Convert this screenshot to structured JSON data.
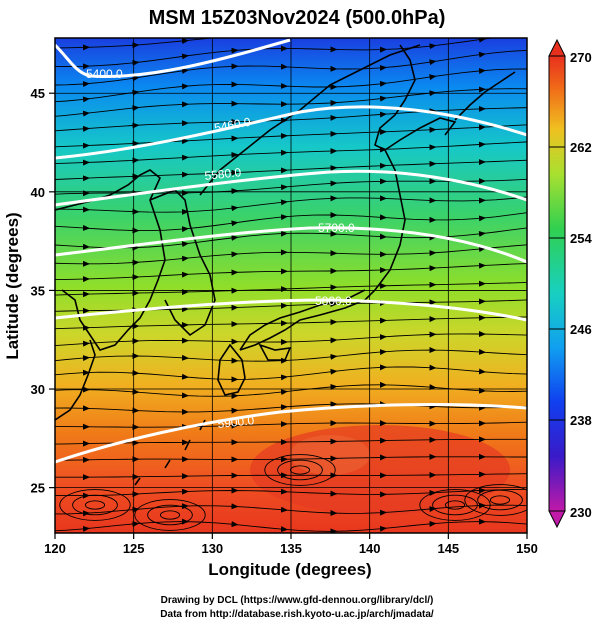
{
  "title": "MSM 15Z03Nov2024 (500.0hPa)",
  "xaxis": {
    "label": "Longitude (degrees)",
    "ticks": [
      "120",
      "125",
      "130",
      "135",
      "140",
      "145",
      "150"
    ]
  },
  "yaxis": {
    "label": "Latitude  (degrees)",
    "ticks": [
      "25",
      "30",
      "35",
      "40",
      "45"
    ]
  },
  "colorbar": {
    "ticks": [
      "270",
      "262",
      "254",
      "246",
      "238",
      "230"
    ],
    "range": [
      230,
      270
    ]
  },
  "contours": [
    {
      "label": "5400.0",
      "lat": 46.8
    },
    {
      "label": "5460.0",
      "lat": 44.0
    },
    {
      "label": "5580.0",
      "lat": 40.7
    },
    {
      "label": "5700.0",
      "lat": 37.6
    },
    {
      "label": "5800.0",
      "lat": 34.6
    },
    {
      "label": "5900.0",
      "lat": 29.1
    }
  ],
  "map_extent": {
    "lon": [
      120,
      150
    ],
    "lat": [
      22.7,
      47.8
    ]
  },
  "credits": {
    "line1": "Drawing by DCL (https://www.gfd-dennou.org/library/dcl/)",
    "line2": "Data from http://database.rish.kyoto-u.ac.jp/arch/jmadata/"
  }
}
